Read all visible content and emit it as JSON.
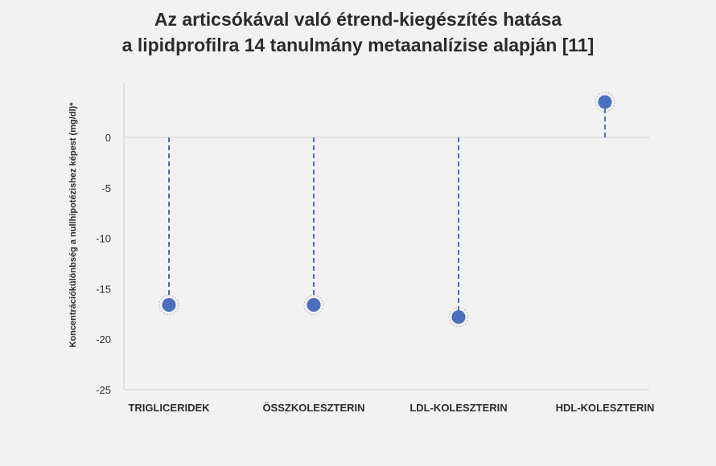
{
  "chart_data": {
    "type": "scatter",
    "title_lines": [
      "Az articsókával való étrend-kiegészítés hatása",
      "a lipidprofilra 14 tanulmány metaanalízise alapján [11]"
    ],
    "ylabel": "Koncentrációkülönbség a nullhipotézishez képest (mg/dl)*",
    "xlabel": "",
    "categories": [
      "TRIGLICERIDEK",
      "ÖSSZKOLESZTERIN",
      "LDL-KOLESZTERIN",
      "HDL-KOLESZTERIN"
    ],
    "values": [
      -16.6,
      -16.6,
      -17.8,
      3.5
    ],
    "ylim": [
      -25,
      5
    ],
    "yticks": [
      0,
      -5,
      -10,
      -15,
      -20,
      -25
    ],
    "grid": false,
    "point_color": "#4a6fbf",
    "stem_style": "dashed"
  }
}
